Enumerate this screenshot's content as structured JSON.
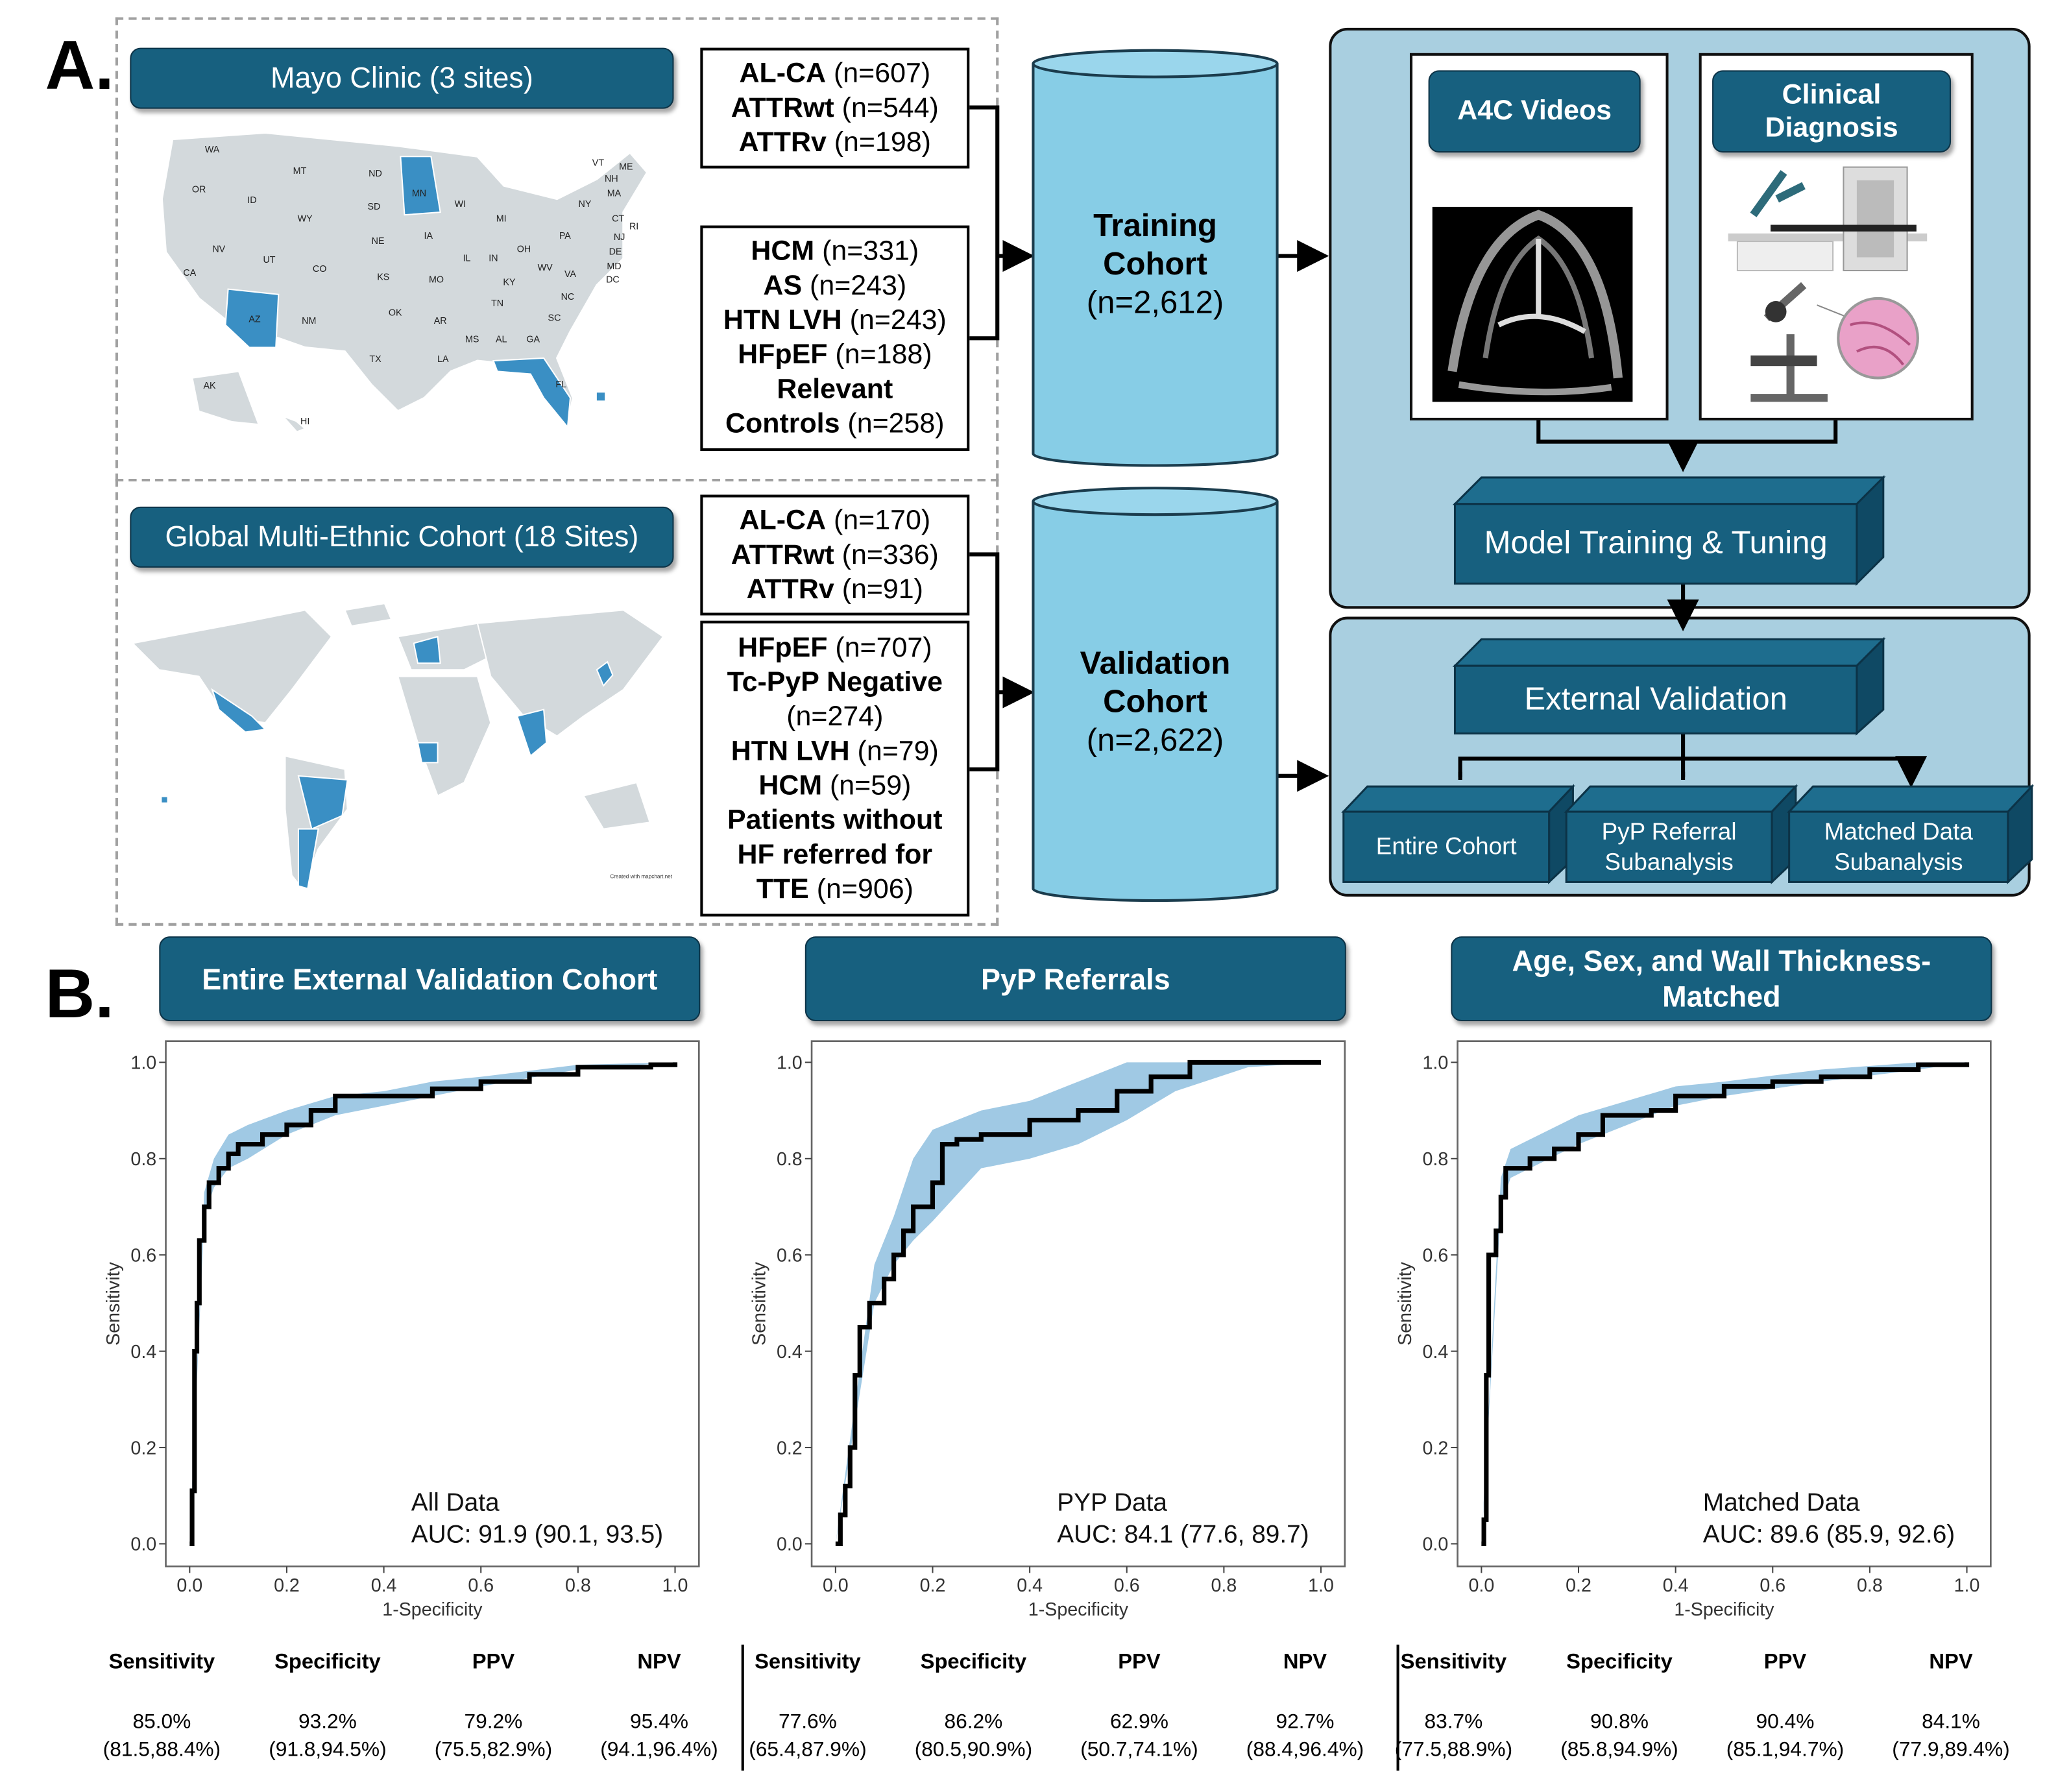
{
  "panel_a": {
    "letter": "A.",
    "mayo": {
      "title": "Mayo Clinic (3 sites)",
      "state_labels": [
        "WA",
        "OR",
        "CA",
        "NV",
        "ID",
        "MT",
        "WY",
        "UT",
        "AZ",
        "CO",
        "NM",
        "ND",
        "SD",
        "NE",
        "KS",
        "OK",
        "TX",
        "MN",
        "IA",
        "MO",
        "AR",
        "LA",
        "WI",
        "IL",
        "MI",
        "IN",
        "OH",
        "KY",
        "TN",
        "MS",
        "AL",
        "GA",
        "FL",
        "SC",
        "NC",
        "VA",
        "WV",
        "PA",
        "NY",
        "ME",
        "VT",
        "NH",
        "MA",
        "RI",
        "CT",
        "NJ",
        "DE",
        "MD",
        "DC",
        "AK",
        "HI"
      ],
      "highlighted_states": [
        "MN",
        "AZ",
        "FL"
      ],
      "box1": [
        {
          "b": "AL-CA",
          "n": " (n=607)"
        },
        {
          "b": "ATTRwt",
          "n": " (n=544)"
        },
        {
          "b": "ATTRv",
          "n": " (n=198)"
        }
      ],
      "box2": [
        {
          "b": "HCM",
          "n": " (n=331)"
        },
        {
          "b": "AS",
          "n": " (n=243)"
        },
        {
          "b": "HTN LVH",
          "n": " (n=243)"
        },
        {
          "b": "HFpEF",
          "n": " (n=188)"
        },
        {
          "b": "Relevant",
          "n": ""
        },
        {
          "b": "Controls",
          "n": " (n=258)"
        }
      ]
    },
    "global": {
      "title": "Global Multi-Ethnic Cohort (18 Sites)",
      "map_credit": "Created with mapchart.net",
      "box1": [
        {
          "b": "AL-CA",
          "n": " (n=170)"
        },
        {
          "b": "ATTRwt",
          "n": " (n=336)"
        },
        {
          "b": "ATTRv",
          "n": " (n=91)"
        }
      ],
      "box2": [
        {
          "b": "HFpEF",
          "n": " (n=707)"
        },
        {
          "b": "Tc-PyP Negative",
          "n": ""
        },
        {
          "b": "",
          "n": "(n=274)"
        },
        {
          "b": "HTN LVH",
          "n": " (n=79)"
        },
        {
          "b": "HCM",
          "n": " (n=59)"
        },
        {
          "b": "Patients without",
          "n": ""
        },
        {
          "b": "HF referred for",
          "n": ""
        },
        {
          "b": "TTE",
          "n": " (n=906)"
        }
      ]
    },
    "training_cohort": {
      "line1": "Training",
      "line2": "Cohort",
      "count": "(n=2,612)"
    },
    "validation_cohort": {
      "line1": "Validation",
      "line2": "Cohort",
      "count": "(n=2,622)"
    },
    "a4c_videos": "A4C Videos",
    "clinical_diagnosis": "Clinical Diagnosis",
    "model_training": "Model Training & Tuning",
    "external_validation": "External Validation",
    "subgroups": [
      {
        "l1": "Entire Cohort",
        "l2": ""
      },
      {
        "l1": "PyP Referral",
        "l2": "Subanalysis"
      },
      {
        "l1": "Matched Data",
        "l2": "Subanalysis"
      }
    ],
    "colors": {
      "banner": "#17607f",
      "cylinder": "#87cde6",
      "panel": "#a9cfe0",
      "highlight": "#3a8fc4",
      "map_gray": "#d3d9dc"
    }
  },
  "panel_b": {
    "letter": "B.",
    "stat_headers": [
      "Sensitivity",
      "Specificity",
      "PPV",
      "NPV"
    ]
  },
  "chart_data": [
    {
      "type": "line",
      "title": "Entire External Validation Cohort",
      "xlabel": "1-Specificity",
      "ylabel": "Sensitivity",
      "xlim": [
        0,
        1
      ],
      "ylim": [
        0,
        1
      ],
      "xticks": [
        "0.0",
        "0.2",
        "0.4",
        "0.6",
        "0.8",
        "1.0"
      ],
      "yticks": [
        "0.0",
        "0.2",
        "0.4",
        "0.6",
        "0.8",
        "1.0"
      ],
      "legend_line1": "All Data",
      "legend_line2": "AUC: 91.9 (90.1, 93.5)",
      "roc": [
        [
          0,
          0
        ],
        [
          0.005,
          0.11
        ],
        [
          0.01,
          0.11
        ],
        [
          0.01,
          0.4
        ],
        [
          0.015,
          0.5
        ],
        [
          0.02,
          0.63
        ],
        [
          0.03,
          0.7
        ],
        [
          0.04,
          0.75
        ],
        [
          0.06,
          0.78
        ],
        [
          0.08,
          0.81
        ],
        [
          0.1,
          0.83
        ],
        [
          0.15,
          0.85
        ],
        [
          0.2,
          0.87
        ],
        [
          0.25,
          0.9
        ],
        [
          0.3,
          0.93
        ],
        [
          0.45,
          0.93
        ],
        [
          0.5,
          0.945
        ],
        [
          0.6,
          0.96
        ],
        [
          0.7,
          0.975
        ],
        [
          0.8,
          0.99
        ],
        [
          0.95,
          0.995
        ],
        [
          1,
          1
        ]
      ],
      "ci_band": [
        [
          0.03,
          0.68,
          0.73
        ],
        [
          0.05,
          0.74,
          0.8
        ],
        [
          0.08,
          0.78,
          0.85
        ],
        [
          0.12,
          0.8,
          0.87
        ],
        [
          0.2,
          0.85,
          0.9
        ],
        [
          0.3,
          0.89,
          0.93
        ],
        [
          0.4,
          0.91,
          0.94
        ],
        [
          0.5,
          0.93,
          0.96
        ],
        [
          0.6,
          0.95,
          0.97
        ],
        [
          0.8,
          0.985,
          0.995
        ],
        [
          1,
          1,
          1
        ]
      ],
      "color": "#8fbfdf",
      "stats": {
        "values": [
          "85.0%",
          "93.2%",
          "79.2%",
          "95.4%"
        ],
        "ci": [
          "(81.5,88.4%)",
          "(91.8,94.5%)",
          "(75.5,82.9%)",
          "(94.1,96.4%)"
        ]
      }
    },
    {
      "type": "line",
      "title": "PyP Referrals",
      "xlabel": "1-Specificity",
      "ylabel": "Sensitivity",
      "xlim": [
        0,
        1
      ],
      "ylim": [
        0,
        1
      ],
      "xticks": [
        "0.0",
        "0.2",
        "0.4",
        "0.6",
        "0.8",
        "1.0"
      ],
      "yticks": [
        "0.0",
        "0.2",
        "0.4",
        "0.6",
        "0.8",
        "1.0"
      ],
      "legend_line1": "PYP Data",
      "legend_line2": "AUC: 84.1 (77.6, 89.7)",
      "roc": [
        [
          0,
          0
        ],
        [
          0.01,
          0.06
        ],
        [
          0.02,
          0.12
        ],
        [
          0.03,
          0.2
        ],
        [
          0.04,
          0.35
        ],
        [
          0.05,
          0.45
        ],
        [
          0.07,
          0.5
        ],
        [
          0.1,
          0.55
        ],
        [
          0.12,
          0.6
        ],
        [
          0.14,
          0.65
        ],
        [
          0.16,
          0.7
        ],
        [
          0.2,
          0.75
        ],
        [
          0.22,
          0.83
        ],
        [
          0.25,
          0.84
        ],
        [
          0.3,
          0.85
        ],
        [
          0.4,
          0.88
        ],
        [
          0.5,
          0.9
        ],
        [
          0.58,
          0.94
        ],
        [
          0.65,
          0.97
        ],
        [
          0.73,
          1.0
        ],
        [
          1,
          1
        ]
      ],
      "ci_band": [
        [
          0.08,
          0.5,
          0.58
        ],
        [
          0.12,
          0.58,
          0.68
        ],
        [
          0.16,
          0.63,
          0.8
        ],
        [
          0.2,
          0.67,
          0.86
        ],
        [
          0.3,
          0.78,
          0.9
        ],
        [
          0.4,
          0.8,
          0.92
        ],
        [
          0.5,
          0.83,
          0.96
        ],
        [
          0.6,
          0.88,
          1
        ],
        [
          0.7,
          0.94,
          1
        ],
        [
          0.85,
          0.99,
          1
        ],
        [
          1,
          1,
          1
        ]
      ],
      "color": "#8fbfdf",
      "stats": {
        "values": [
          "77.6%",
          "86.2%",
          "62.9%",
          "92.7%"
        ],
        "ci": [
          "(65.4,87.9%)",
          "(80.5,90.9%)",
          "(50.7,74.1%)",
          "(88.4,96.4%)"
        ]
      }
    },
    {
      "type": "line",
      "title": "Age, Sex, and Wall Thickness-Matched",
      "xlabel": "1-Specificity",
      "ylabel": "Sensitivity",
      "xlim": [
        0,
        1
      ],
      "ylim": [
        0,
        1
      ],
      "xticks": [
        "0.0",
        "0.2",
        "0.4",
        "0.6",
        "0.8",
        "1.0"
      ],
      "yticks": [
        "0.0",
        "0.2",
        "0.4",
        "0.6",
        "0.8",
        "1.0"
      ],
      "legend_line1": "Matched Data",
      "legend_line2": "AUC: 89.6 (85.9, 92.6)",
      "roc": [
        [
          0,
          0
        ],
        [
          0.005,
          0.05
        ],
        [
          0.01,
          0.35
        ],
        [
          0.015,
          0.6
        ],
        [
          0.03,
          0.65
        ],
        [
          0.04,
          0.72
        ],
        [
          0.05,
          0.78
        ],
        [
          0.1,
          0.8
        ],
        [
          0.15,
          0.82
        ],
        [
          0.2,
          0.85
        ],
        [
          0.25,
          0.89
        ],
        [
          0.35,
          0.9
        ],
        [
          0.4,
          0.93
        ],
        [
          0.5,
          0.95
        ],
        [
          0.6,
          0.96
        ],
        [
          0.7,
          0.97
        ],
        [
          0.8,
          0.985
        ],
        [
          0.9,
          0.995
        ],
        [
          1,
          1
        ]
      ],
      "ci_band": [
        [
          0.04,
          0.7,
          0.76
        ],
        [
          0.06,
          0.76,
          0.82
        ],
        [
          0.1,
          0.78,
          0.84
        ],
        [
          0.2,
          0.83,
          0.89
        ],
        [
          0.3,
          0.87,
          0.92
        ],
        [
          0.4,
          0.91,
          0.95
        ],
        [
          0.5,
          0.93,
          0.96
        ],
        [
          0.7,
          0.96,
          0.985
        ],
        [
          0.9,
          0.985,
          1
        ],
        [
          1,
          1,
          1
        ]
      ],
      "color": "#8fbfdf",
      "stats": {
        "values": [
          "83.7%",
          "90.8%",
          "90.4%",
          "84.1%"
        ],
        "ci": [
          "(77.5,88.9%)",
          "(85.8,94.9%)",
          "(85.1,94.7%)",
          "(77.9,89.4%)"
        ]
      }
    }
  ]
}
